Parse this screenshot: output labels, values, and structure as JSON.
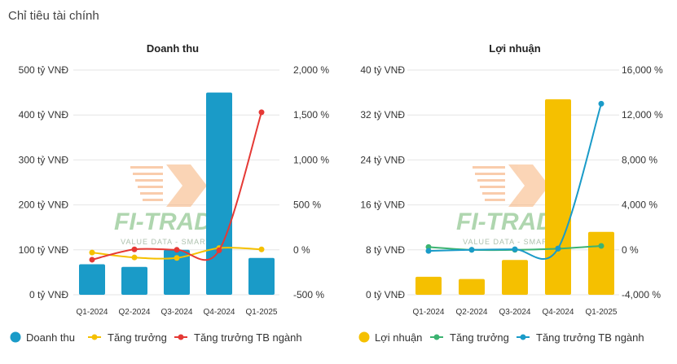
{
  "page_title": "Chỉ tiêu tài chính",
  "watermark": {
    "brand": "FI-TRADE",
    "tagline": "VALUE DATA - SMART I"
  },
  "chart_data": [
    {
      "type": "bar+line",
      "title": "Doanh thu",
      "categories": [
        "Q1-2024",
        "Q2-2024",
        "Q3-2024",
        "Q4-2024",
        "Q1-2025"
      ],
      "left_axis": {
        "ticks": [
          "500 tỷ VNĐ",
          "400 tỷ VNĐ",
          "300 tỷ VNĐ",
          "200 tỷ VNĐ",
          "100 tỷ VNĐ",
          "0 tỷ VNĐ"
        ],
        "ylim": [
          0,
          500
        ]
      },
      "right_axis": {
        "ticks": [
          "2,000 %",
          "1,500 %",
          "1,000 %",
          "500 %",
          "0 %",
          "-500 %"
        ],
        "ylim": [
          -500,
          2000
        ]
      },
      "series": [
        {
          "name": "Doanh thu",
          "type": "bar",
          "axis": "left",
          "color": "#1a9bc8",
          "values": [
            68,
            62,
            100,
            450,
            82
          ]
        },
        {
          "name": "Tăng trưởng",
          "type": "line",
          "axis": "right",
          "color": "#f5c000",
          "values": [
            -30,
            -85,
            -90,
            20,
            5
          ]
        },
        {
          "name": "Tăng trưởng TB ngành",
          "type": "line",
          "axis": "right",
          "color": "#e53935",
          "values": [
            -110,
            5,
            0,
            -5,
            1530
          ]
        }
      ]
    },
    {
      "type": "bar+line",
      "title": "Lợi nhuận",
      "categories": [
        "Q1-2024",
        "Q2-2024",
        "Q3-2024",
        "Q4-2024",
        "Q1-2025"
      ],
      "left_axis": {
        "ticks": [
          "40 tỷ VNĐ",
          "32 tỷ VNĐ",
          "24 tỷ VNĐ",
          "16 tỷ VNĐ",
          "8 tỷ VNĐ",
          "0 tỷ VNĐ"
        ],
        "ylim": [
          0,
          40
        ]
      },
      "right_axis": {
        "ticks": [
          "16,000 %",
          "12,000 %",
          "8,000 %",
          "4,000 %",
          "0 %",
          "-4,000 %"
        ],
        "ylim": [
          -4000,
          16000
        ]
      },
      "series": [
        {
          "name": "Lợi nhuận",
          "type": "bar",
          "axis": "left",
          "color": "#f5c000",
          "values": [
            3.2,
            2.8,
            6.2,
            34.8,
            11.2
          ]
        },
        {
          "name": "Tăng trưởng",
          "type": "line",
          "axis": "right",
          "color": "#3cb371",
          "values": [
            250,
            0,
            0,
            100,
            350
          ]
        },
        {
          "name": "Tăng trưởng TB ngành",
          "type": "line",
          "axis": "right",
          "color": "#1a9bc8",
          "values": [
            -100,
            0,
            50,
            120,
            13000
          ]
        }
      ]
    }
  ]
}
